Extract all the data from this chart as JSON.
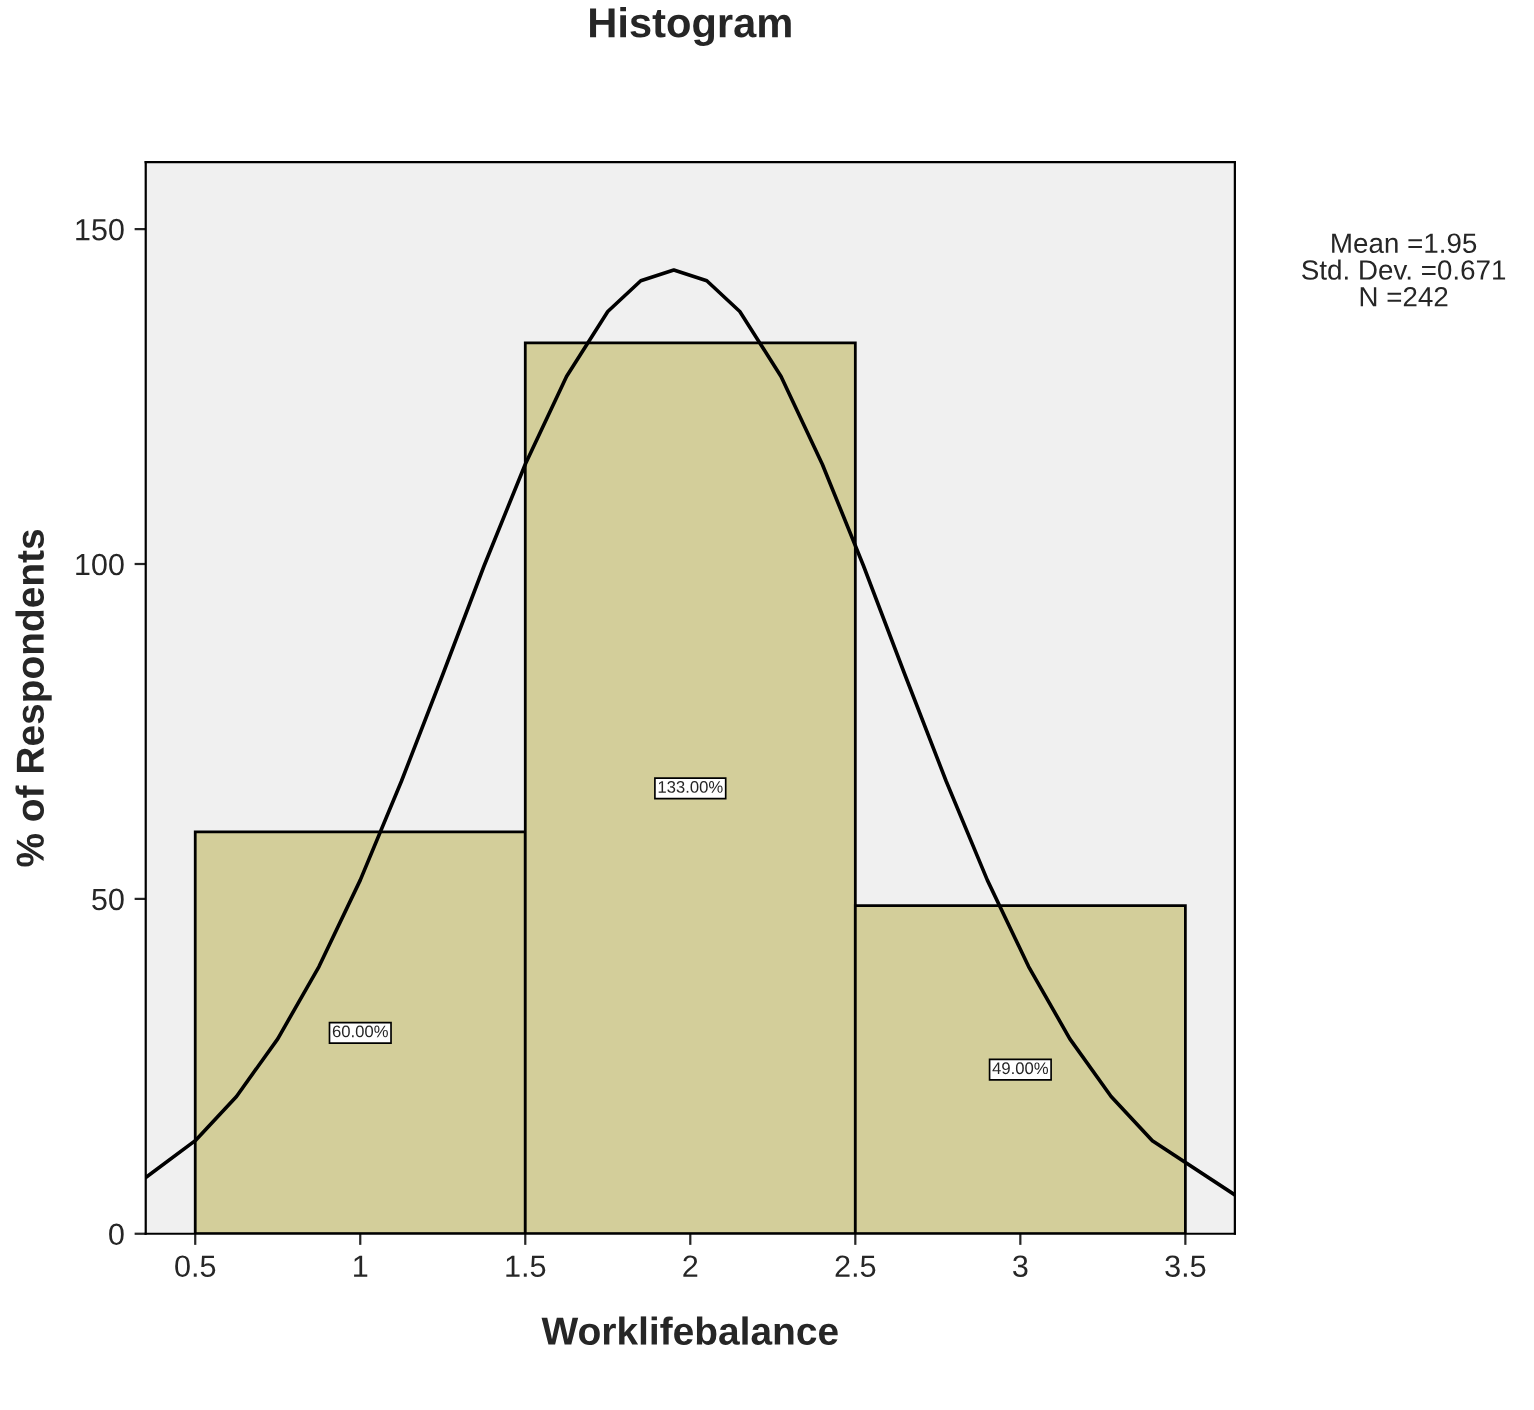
{
  "chart_data": {
    "type": "histogram",
    "title": "Histogram",
    "xlabel": "Worklifebalance",
    "ylabel": "% of Respondents",
    "bins": [
      0.5,
      1.5,
      2.5,
      3.5
    ],
    "values": [
      60,
      133,
      49
    ],
    "color": "#d3ce9a",
    "value_labels": [
      "60.00%",
      "133.00%",
      "49.00%"
    ],
    "series": [
      {
        "type": "line",
        "color": "#000000",
        "x": [
          0.35,
          0.5,
          0.625,
          0.75,
          0.875,
          1.0,
          1.125,
          1.25,
          1.375,
          1.5,
          1.625,
          1.75,
          1.85,
          1.95,
          2.05,
          2.15,
          2.275,
          2.4,
          2.525,
          2.65,
          2.775,
          2.9,
          3.025,
          3.15,
          3.275,
          3.4,
          3.65
        ],
        "values": [
          8.4,
          13.9,
          20.5,
          29.1,
          39.9,
          52.8,
          67.6,
          83.5,
          99.7,
          114.9,
          128,
          137.7,
          142.3,
          143.9,
          142.3,
          137.7,
          128,
          114.9,
          99.7,
          83.5,
          67.6,
          52.8,
          39.9,
          29.1,
          20.5,
          13.9,
          5.8
        ]
      }
    ],
    "annotations": [
      "Mean =1.95",
      "Std. Dev. =0.671",
      "N =242"
    ],
    "xlim": [
      0.35,
      3.65
    ],
    "xticks": [
      0.5,
      1,
      1.5,
      2,
      2.5,
      3,
      3.5
    ],
    "ylim": [
      0,
      160
    ],
    "yticks": [
      0,
      50,
      100,
      150
    ],
    "grid": false
  }
}
